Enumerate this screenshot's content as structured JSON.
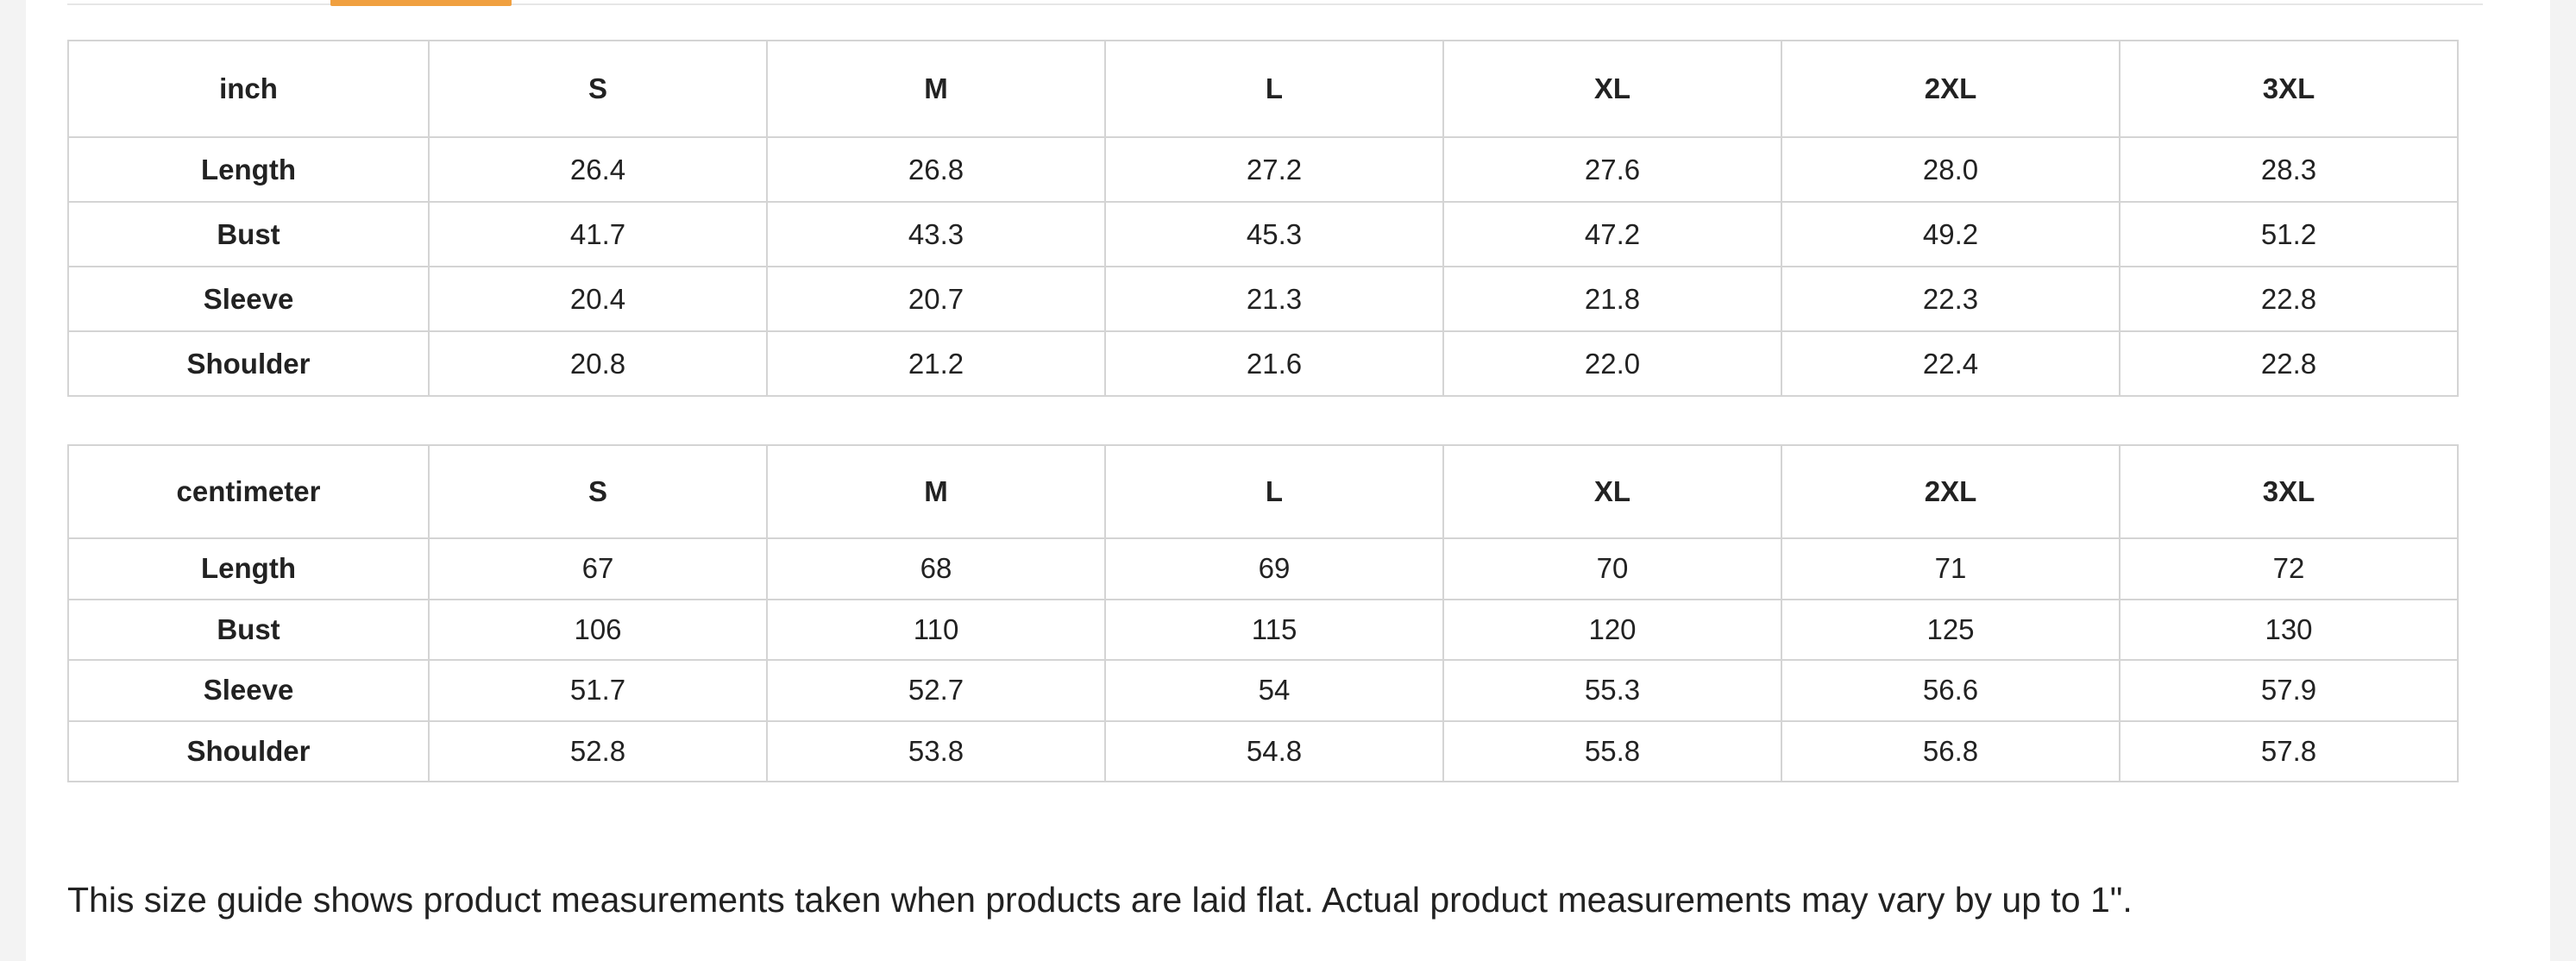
{
  "tabs": {
    "active_indicator_color": "#f0a040"
  },
  "inch_table": {
    "unit_header": "inch",
    "sizes": [
      "S",
      "M",
      "L",
      "XL",
      "2XL",
      "3XL"
    ],
    "rows": [
      {
        "label": "Length",
        "values": [
          "26.4",
          "26.8",
          "27.2",
          "27.6",
          "28.0",
          "28.3"
        ]
      },
      {
        "label": "Bust",
        "values": [
          "41.7",
          "43.3",
          "45.3",
          "47.2",
          "49.2",
          "51.2"
        ]
      },
      {
        "label": "Sleeve",
        "values": [
          "20.4",
          "20.7",
          "21.3",
          "21.8",
          "22.3",
          "22.8"
        ]
      },
      {
        "label": "Shoulder",
        "values": [
          "20.8",
          "21.2",
          "21.6",
          "22.0",
          "22.4",
          "22.8"
        ]
      }
    ]
  },
  "cm_table": {
    "unit_header": "centimeter",
    "sizes": [
      "S",
      "M",
      "L",
      "XL",
      "2XL",
      "3XL"
    ],
    "rows": [
      {
        "label": "Length",
        "values": [
          "67",
          "68",
          "69",
          "70",
          "71",
          "72"
        ]
      },
      {
        "label": "Bust",
        "values": [
          "106",
          "110",
          "115",
          "120",
          "125",
          "130"
        ]
      },
      {
        "label": "Sleeve",
        "values": [
          "51.7",
          "52.7",
          "54",
          "55.3",
          "56.6",
          "57.9"
        ]
      },
      {
        "label": "Shoulder",
        "values": [
          "52.8",
          "53.8",
          "54.8",
          "55.8",
          "56.8",
          "57.8"
        ]
      }
    ]
  },
  "note": "This size guide shows product measurements taken when products are laid flat. Actual product measurements may vary by up to 1\"."
}
